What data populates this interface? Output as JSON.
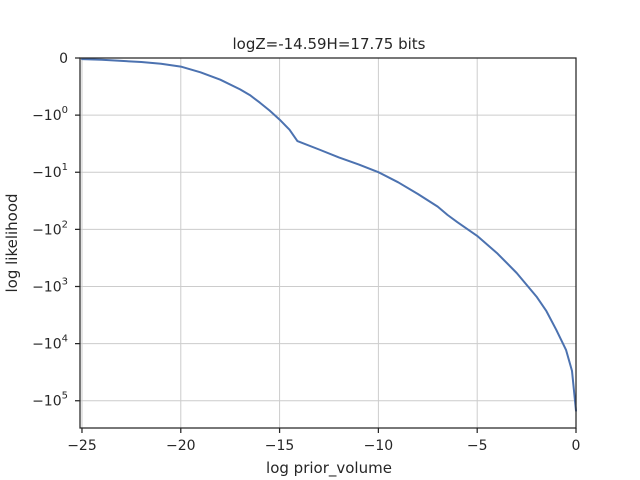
{
  "chart_data": {
    "type": "line",
    "title": "logZ=-14.59H=17.75 bits",
    "xlabel": "log prior_volume",
    "ylabel": "log likelihood",
    "xlim": [
      -25.1,
      0
    ],
    "yscale": "symlog",
    "ylim": [
      -300000,
      0
    ],
    "grid": true,
    "x_ticks": [
      {
        "value": -25,
        "label": "−25"
      },
      {
        "value": -20,
        "label": "−20"
      },
      {
        "value": -15,
        "label": "−15"
      },
      {
        "value": -10,
        "label": "−10"
      },
      {
        "value": -5,
        "label": "−5"
      },
      {
        "value": 0,
        "label": "0"
      }
    ],
    "y_ticks": [
      {
        "value": 0,
        "base": "0",
        "exp": ""
      },
      {
        "value": -1,
        "base": "−10",
        "exp": "0"
      },
      {
        "value": -10,
        "base": "−10",
        "exp": "1"
      },
      {
        "value": -100,
        "base": "−10",
        "exp": "2"
      },
      {
        "value": -1000,
        "base": "−10",
        "exp": "3"
      },
      {
        "value": -10000,
        "base": "−10",
        "exp": "4"
      },
      {
        "value": -100000,
        "base": "−10",
        "exp": "5"
      }
    ],
    "series": [
      {
        "color": "#4c72b0",
        "x": [
          -25,
          -24,
          -23,
          -22,
          -21,
          -20,
          -19,
          -18,
          -17,
          -16.5,
          -16,
          -15.5,
          -15,
          -14.5,
          -14.1,
          -13,
          -12,
          -11,
          -10,
          -9,
          -8,
          -7,
          -6.5,
          -6,
          -5,
          -4,
          -3,
          -2,
          -1.5,
          -1,
          -0.5,
          -0.2,
          0
        ],
        "y": [
          -0.02,
          -0.03,
          -0.05,
          -0.07,
          -0.1,
          -0.15,
          -0.25,
          -0.38,
          -0.55,
          -0.65,
          -0.78,
          -0.92,
          -1.2,
          -1.8,
          -2.85,
          -4,
          -5.5,
          -7.3,
          -10,
          -15,
          -24,
          -40,
          -56,
          -75,
          -130,
          -260,
          -580,
          -1500,
          -2700,
          -5700,
          -13000,
          -30000,
          -150000
        ]
      }
    ]
  }
}
